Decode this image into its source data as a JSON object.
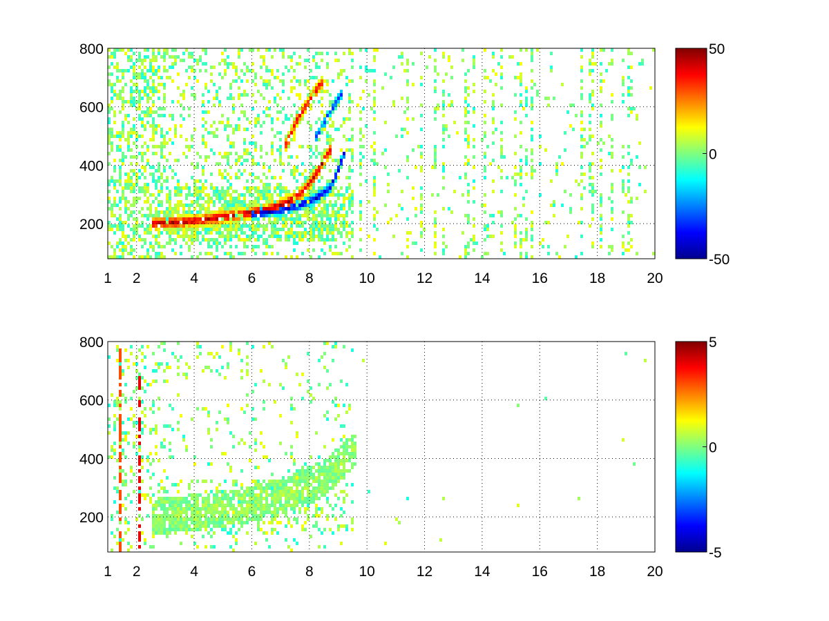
{
  "chart_data": [
    {
      "type": "heatmap",
      "title": "",
      "xlabel": "",
      "ylabel": "",
      "xlim": [
        1,
        20
      ],
      "ylim": [
        80,
        800
      ],
      "x_ticks": [
        "1",
        "2",
        "4",
        "6",
        "8",
        "10",
        "12",
        "14",
        "16",
        "18",
        "20"
      ],
      "y_ticks": [
        "200",
        "400",
        "600",
        "800"
      ],
      "grid": true,
      "colormap": "jet",
      "clim": [
        -50,
        50
      ],
      "colorbar_ticks": [
        "50",
        "0",
        "-50"
      ],
      "features": [
        {
          "name": "positive ridge",
          "x": [
            2.6,
            3.5,
            4.5,
            5.5,
            6.5,
            7.2,
            7.8,
            8.3,
            8.7
          ],
          "y": [
            200,
            205,
            215,
            228,
            248,
            270,
            310,
            380,
            450
          ],
          "value": 45
        },
        {
          "name": "negative ridge",
          "x": [
            6.0,
            7.0,
            7.6,
            8.2,
            8.7,
            9.0,
            9.2
          ],
          "y": [
            232,
            245,
            262,
            285,
            320,
            380,
            440
          ],
          "value": -45
        },
        {
          "name": "upper positive arc",
          "x": [
            7.2,
            7.6,
            8.0,
            8.4
          ],
          "y": [
            470,
            560,
            620,
            680
          ],
          "value": 40
        },
        {
          "name": "upper negative arc",
          "x": [
            8.3,
            8.7,
            9.1
          ],
          "y": [
            500,
            580,
            640
          ],
          "value": -35
        }
      ]
    },
    {
      "type": "heatmap",
      "title": "",
      "xlabel": "",
      "ylabel": "",
      "xlim": [
        1,
        20
      ],
      "ylim": [
        80,
        800
      ],
      "x_ticks": [
        "1",
        "2",
        "4",
        "6",
        "8",
        "10",
        "12",
        "14",
        "16",
        "18",
        "20"
      ],
      "y_ticks": [
        "200",
        "400",
        "600",
        "800"
      ],
      "grid": true,
      "colormap": "jet",
      "clim": [
        -5,
        5
      ],
      "colorbar_ticks": [
        "5",
        "0",
        "-5"
      ],
      "features": [
        {
          "name": "near-zero band",
          "x": [
            2.6,
            4.0,
            5.5,
            7.0,
            8.5,
            9.5
          ],
          "y": [
            200,
            215,
            235,
            270,
            330,
            420
          ],
          "value": 0.3
        },
        {
          "name": "vertical streak",
          "x": [
            1.45,
            1.45
          ],
          "y": [
            80,
            780
          ],
          "value": 3
        },
        {
          "name": "vertical streak",
          "x": [
            2.1,
            2.1
          ],
          "y": [
            80,
            680
          ],
          "value": 4
        }
      ]
    }
  ]
}
